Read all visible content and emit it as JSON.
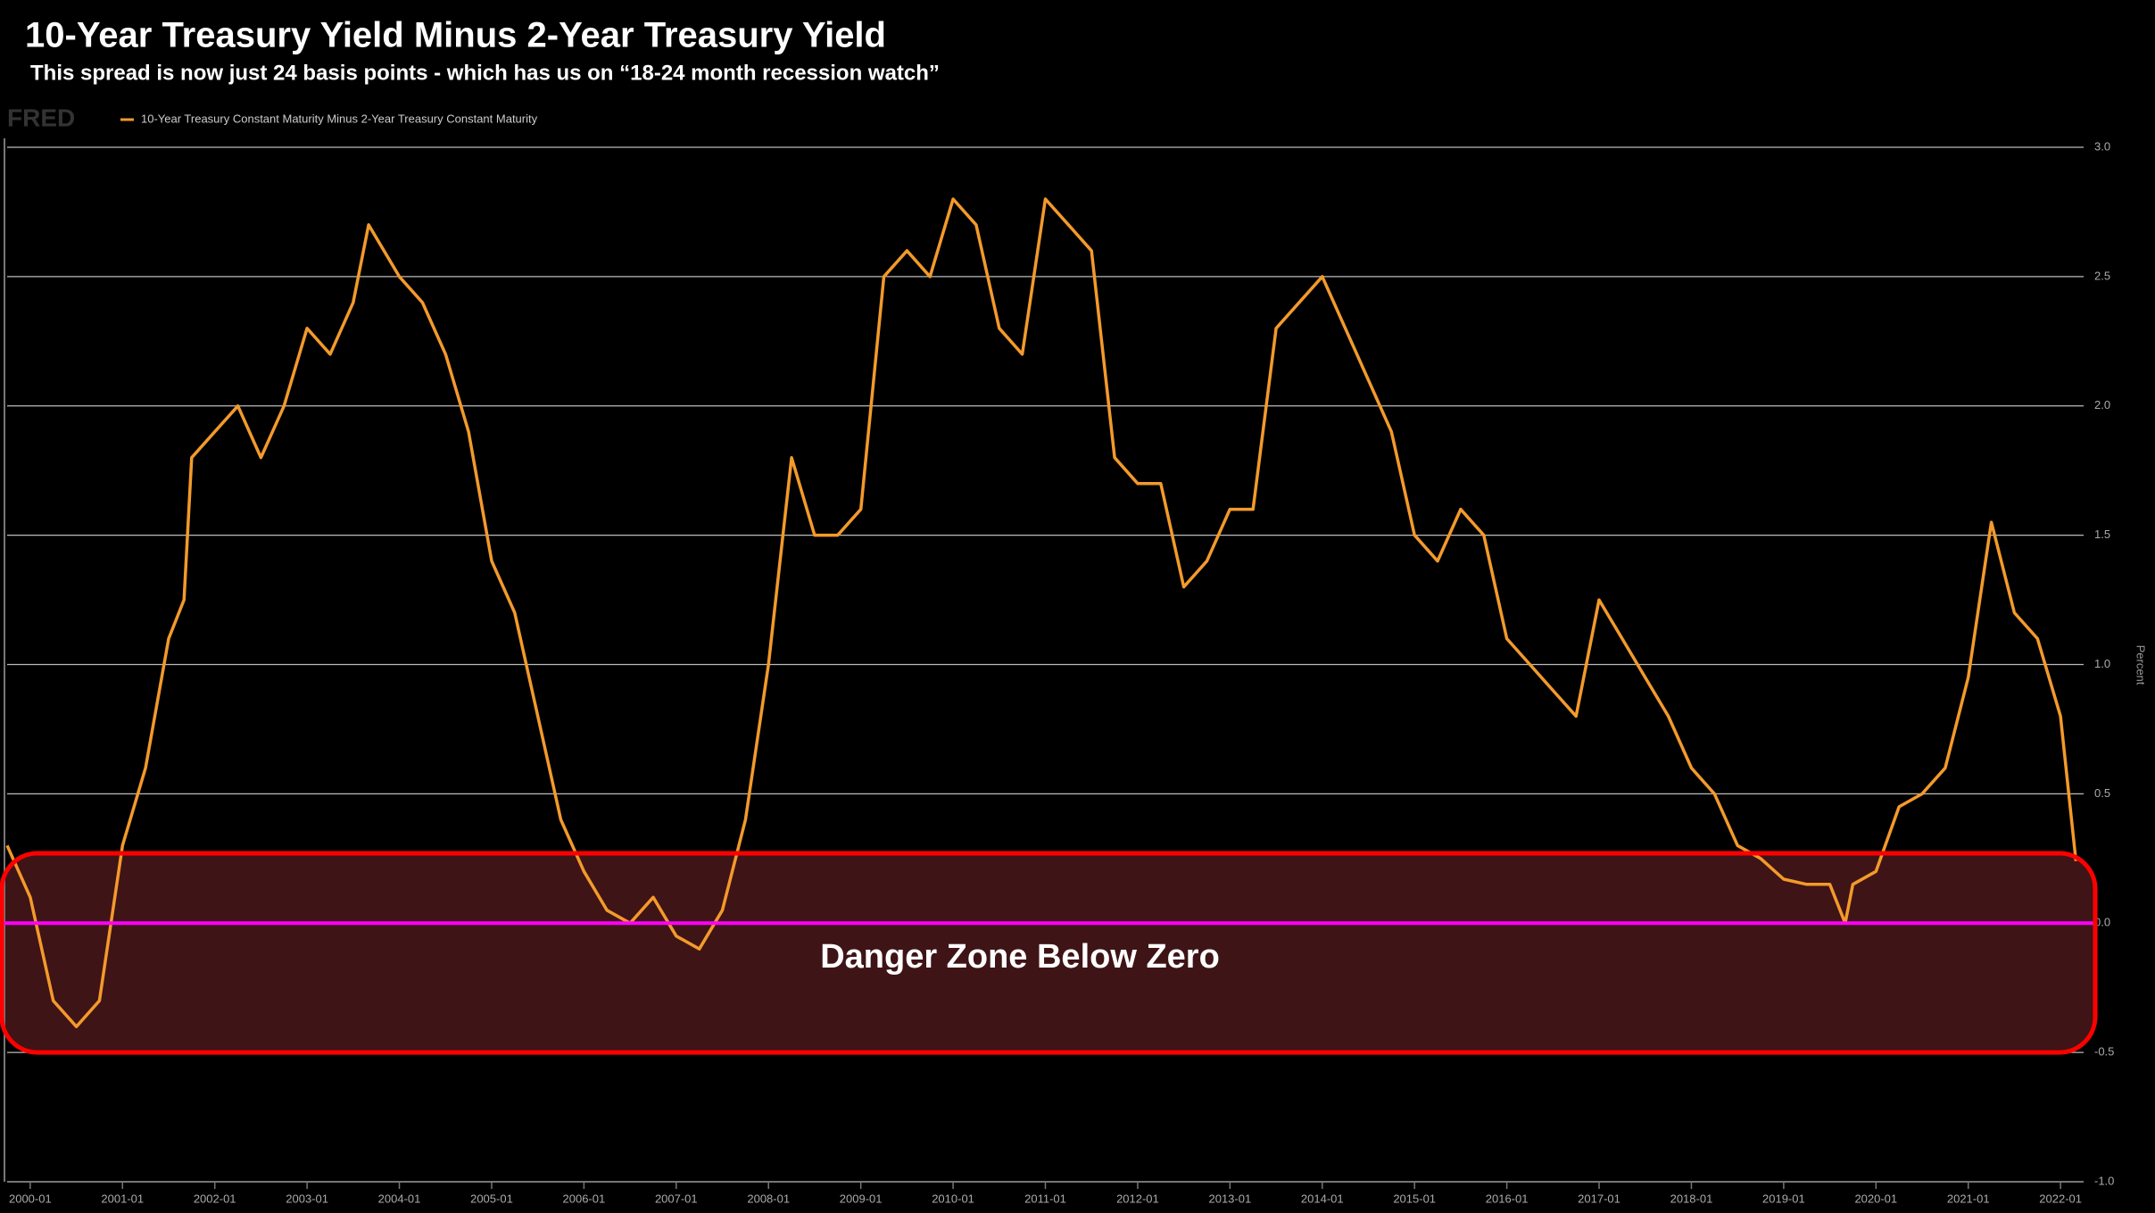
{
  "chart_data": {
    "type": "line",
    "title": "10-Year Treasury Yield Minus 2-Year Treasury Yield",
    "subtitle": "This spread is now just 24 basis points - which has us on “18-24 month recession watch”",
    "source_logo": "FRED",
    "y_label": "Percent",
    "annotation": "Danger Zone Below Zero",
    "zone": {
      "ymin": -0.5,
      "ymax": 0.27,
      "fill": "#3f1416",
      "border": "#ff0000"
    },
    "reference_line": {
      "y": 0,
      "color": "#ff00ff"
    },
    "xlim": [
      "1999-10",
      "2022-04"
    ],
    "xticks": [
      "2000-01",
      "2001-01",
      "2002-01",
      "2003-01",
      "2004-01",
      "2005-01",
      "2006-01",
      "2007-01",
      "2008-01",
      "2009-01",
      "2010-01",
      "2011-01",
      "2012-01",
      "2013-01",
      "2014-01",
      "2015-01",
      "2016-01",
      "2017-01",
      "2018-01",
      "2019-01",
      "2020-01",
      "2021-01",
      "2022-01"
    ],
    "ylim": [
      -1,
      3
    ],
    "yticks": [
      {
        "value": -1,
        "label": "-1.0"
      },
      -0.5,
      {
        "value": 0,
        "label": "0.0"
      },
      0.5,
      {
        "value": 1,
        "label": "1.0"
      },
      1.5,
      {
        "value": 2,
        "label": "2.0"
      },
      2.5,
      {
        "value": 3,
        "label": "3.0"
      }
    ],
    "grid": true,
    "x": [
      "1999-10",
      "2000-01",
      "2000-04",
      "2000-07",
      "2000-10",
      "2001-01",
      "2001-04",
      "2001-07",
      "2001-09",
      "2001-10",
      "2002-01",
      "2002-04",
      "2002-07",
      "2002-10",
      "2003-01",
      "2003-04",
      "2003-07",
      "2003-09",
      "2004-01",
      "2004-04",
      "2004-07",
      "2004-10",
      "2005-01",
      "2005-04",
      "2005-07",
      "2005-10",
      "2006-01",
      "2006-04",
      "2006-07",
      "2006-10",
      "2007-01",
      "2007-04",
      "2007-07",
      "2007-10",
      "2008-01",
      "2008-04",
      "2008-07",
      "2008-10",
      "2009-01",
      "2009-04",
      "2009-07",
      "2009-10",
      "2010-01",
      "2010-04",
      "2010-07",
      "2010-10",
      "2011-01",
      "2011-04",
      "2011-07",
      "2011-10",
      "2012-01",
      "2012-04",
      "2012-07",
      "2012-10",
      "2013-01",
      "2013-04",
      "2013-07",
      "2013-10",
      "2014-01",
      "2014-04",
      "2014-07",
      "2014-10",
      "2015-01",
      "2015-04",
      "2015-07",
      "2015-10",
      "2016-01",
      "2016-04",
      "2016-07",
      "2016-10",
      "2017-01",
      "2017-04",
      "2017-07",
      "2017-10",
      "2018-01",
      "2018-04",
      "2018-07",
      "2018-10",
      "2019-01",
      "2019-04",
      "2019-07",
      "2019-09",
      "2019-10",
      "2020-01",
      "2020-04",
      "2020-07",
      "2020-10",
      "2021-01",
      "2021-04",
      "2021-07",
      "2021-10",
      "2022-01",
      "2022-03"
    ],
    "series": [
      {
        "name": "10-Year Treasury Constant Maturity Minus 2-Year Treasury Constant Maturity",
        "color": "#f39a2b",
        "values": [
          0.3,
          0.1,
          -0.3,
          -0.4,
          -0.3,
          0.3,
          0.6,
          1.1,
          1.25,
          1.8,
          1.9,
          2.0,
          1.8,
          2.0,
          2.3,
          2.2,
          2.4,
          2.7,
          2.5,
          2.4,
          2.2,
          1.9,
          1.4,
          1.2,
          0.8,
          0.4,
          0.2,
          0.05,
          0.0,
          0.1,
          -0.05,
          -0.1,
          0.05,
          0.4,
          1.0,
          1.8,
          1.5,
          1.5,
          1.6,
          2.5,
          2.6,
          2.5,
          2.8,
          2.7,
          2.3,
          2.2,
          2.8,
          2.7,
          2.6,
          1.8,
          1.7,
          1.7,
          1.3,
          1.4,
          1.6,
          1.6,
          2.3,
          2.4,
          2.5,
          2.3,
          2.1,
          1.9,
          1.5,
          1.4,
          1.6,
          1.5,
          1.1,
          1.0,
          0.9,
          0.8,
          1.25,
          1.1,
          0.95,
          0.8,
          0.6,
          0.5,
          0.3,
          0.25,
          0.17,
          0.15,
          0.15,
          0.0,
          0.15,
          0.2,
          0.45,
          0.5,
          0.6,
          0.95,
          1.55,
          1.2,
          1.1,
          0.8,
          0.24
        ]
      }
    ]
  }
}
